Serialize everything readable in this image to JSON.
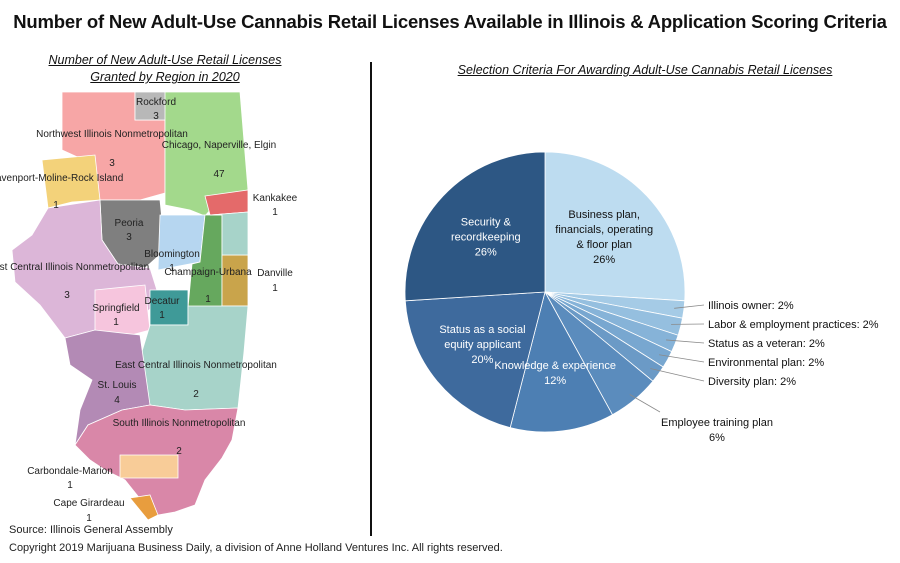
{
  "title": "Number of New Adult-Use Cannabis Retail Licenses Available in Illinois & Application Scoring Criteria",
  "map": {
    "subtitle_line1": "Number of New Adult-Use Retail Licenses",
    "subtitle_line2": "Granted by Region in 2020",
    "regions": [
      {
        "name": "Rockford",
        "licenses": 3,
        "color": "#b8b8b8"
      },
      {
        "name": "Northwest Illinois Nonmetropolitan",
        "licenses": 3,
        "color": "#f7a6a6"
      },
      {
        "name": "Chicago, Naperville, Elgin",
        "licenses": 47,
        "color": "#a3d98c"
      },
      {
        "name": "Davenport-Moline-Rock Island",
        "licenses": 1,
        "color": "#f3d27a"
      },
      {
        "name": "Kankakee",
        "licenses": 1,
        "color": "#e46a6a"
      },
      {
        "name": "Peoria",
        "licenses": 3,
        "color": "#7f7f7f"
      },
      {
        "name": "Bloomington",
        "licenses": 1,
        "color": "#b6d6f0"
      },
      {
        "name": "West Central Illinois Nonmetropolitan",
        "licenses": 3,
        "color": "#dcb6d8"
      },
      {
        "name": "Champaign-Urbana",
        "licenses": 1,
        "color": "#66a85e"
      },
      {
        "name": "Danville",
        "licenses": 1,
        "color": "#c9a44b"
      },
      {
        "name": "Springfield",
        "licenses": 1,
        "color": "#f6c5dd"
      },
      {
        "name": "Decatur",
        "licenses": 1,
        "color": "#3f9a98"
      },
      {
        "name": "East Central Illinois Nonmetropolitan",
        "licenses": 2,
        "color": "#a7d3c9"
      },
      {
        "name": "St. Louis",
        "licenses": 4,
        "color": "#b38ab5"
      },
      {
        "name": "South Illinois Nonmetropolitan",
        "licenses": 2,
        "color": "#d987a8"
      },
      {
        "name": "Carbondale-Marion",
        "licenses": 1,
        "color": "#f8cc98"
      },
      {
        "name": "Cape Girardeau",
        "licenses": 1,
        "color": "#e89d3e"
      }
    ]
  },
  "chart_data": {
    "type": "pie",
    "title": "Selection Criteria For Awarding Adult-Use Cannabis Retail Licenses",
    "unit": "%",
    "slices": [
      {
        "label": "Business plan, financials, operating & floor plan",
        "value": 26,
        "color": "#bddcf0"
      },
      {
        "label": "Illinois owner",
        "value": 2,
        "color": "#a5cbe6"
      },
      {
        "label": "Labor & employment practices",
        "value": 2,
        "color": "#95bfdf"
      },
      {
        "label": "Status as a veteran",
        "value": 2,
        "color": "#86b3d8"
      },
      {
        "label": "Environmental plan",
        "value": 2,
        "color": "#78a7d0"
      },
      {
        "label": "Diversity plan",
        "value": 2,
        "color": "#6b9ac6"
      },
      {
        "label": "Employee training plan",
        "value": 6,
        "color": "#5b8cbd"
      },
      {
        "label": "Knowledge & experience",
        "value": 12,
        "color": "#4d7fb3"
      },
      {
        "label": "Status as a social equity applicant",
        "value": 20,
        "color": "#3e6a9d"
      },
      {
        "label": "Security & recordkeeping",
        "value": 26,
        "color": "#2d5784"
      }
    ]
  },
  "footer": {
    "source": "Source: Illinois General Assembly",
    "copyright": "Copyright 2019 Marijuana Business Daily, a division of Anne Holland Ventures Inc. All rights reserved."
  }
}
